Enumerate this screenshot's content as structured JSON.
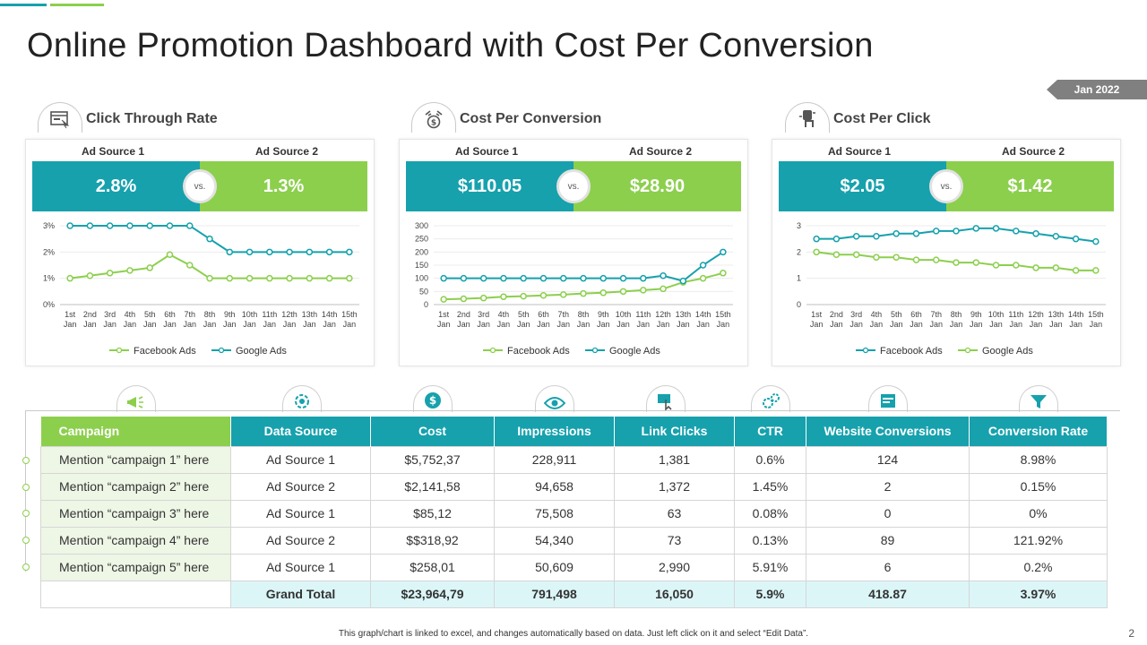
{
  "page": {
    "title": "Online Promotion Dashboard with Cost Per Conversion",
    "date_tag": "Jan 2022",
    "footnote": "This graph/chart is linked to excel, and changes automatically based on data. Just left click on it and select “Edit Data”.",
    "page_number": "2",
    "colors": {
      "teal": "#16a1ad",
      "green": "#8ccf4d",
      "grey": "#808080"
    }
  },
  "panels": [
    {
      "title": "Click  Through Rate",
      "icon": "browser-click-icon",
      "source1_label": "Ad Source 1",
      "source2_label": "Ad Source 2",
      "source1_value": "2.8%",
      "source2_value": "1.3%",
      "vs_label": "vs."
    },
    {
      "title": "Cost Per Conversion",
      "icon": "money-conversion-icon",
      "source1_label": "Ad Source 1",
      "source2_label": "Ad Source 2",
      "source1_value": "$110.05",
      "source2_value": "$28.90",
      "vs_label": "vs."
    },
    {
      "title": "Cost Per Click",
      "icon": "hand-click-icon",
      "source1_label": "Ad Source 1",
      "source2_label": "Ad Source 2",
      "source1_value": "$2.05",
      "source2_value": "$1.42",
      "vs_label": "vs."
    }
  ],
  "chart_data": [
    {
      "type": "line",
      "title": "Click  Through Rate",
      "categories": [
        [
          "1st",
          "Jan"
        ],
        [
          "2nd",
          "Jan"
        ],
        [
          "3rd",
          "Jan"
        ],
        [
          "4th",
          "Jan"
        ],
        [
          "5th",
          "Jan"
        ],
        [
          "6th",
          "Jan"
        ],
        [
          "7th",
          "Jan"
        ],
        [
          "8th",
          "Jan"
        ],
        [
          "9th",
          "Jan"
        ],
        [
          "10th",
          "Jan"
        ],
        [
          "11th",
          "Jan"
        ],
        [
          "12th",
          "Jan"
        ],
        [
          "13th",
          "Jan"
        ],
        [
          "14th",
          "Jan"
        ],
        [
          "15th",
          "Jan"
        ]
      ],
      "yticks": [
        0,
        1,
        2,
        3
      ],
      "ytick_labels": [
        "0%",
        "1%",
        "2%",
        "3%"
      ],
      "ylim": [
        0,
        3
      ],
      "legend": [
        "Facebook Ads",
        "Google Ads"
      ],
      "series": [
        {
          "name": "Facebook Ads",
          "color": "#8ccf4d",
          "values": [
            1.0,
            1.1,
            1.2,
            1.3,
            1.4,
            1.9,
            1.5,
            1.0,
            1.0,
            1.0,
            1.0,
            1.0,
            1.0,
            1.0,
            1.0
          ]
        },
        {
          "name": "Google Ads",
          "color": "#16a1ad",
          "values": [
            3.0,
            3.0,
            3.0,
            3.0,
            3.0,
            3.0,
            3.0,
            2.5,
            2.0,
            2.0,
            2.0,
            2.0,
            2.0,
            2.0,
            2.0
          ]
        }
      ]
    },
    {
      "type": "line",
      "title": "Cost Per Conversion",
      "categories": [
        [
          "1st",
          "Jan"
        ],
        [
          "2nd",
          "Jan"
        ],
        [
          "3rd",
          "Jan"
        ],
        [
          "4th",
          "Jan"
        ],
        [
          "5th",
          "Jan"
        ],
        [
          "6th",
          "Jan"
        ],
        [
          "7th",
          "Jan"
        ],
        [
          "8th",
          "Jan"
        ],
        [
          "9th",
          "Jan"
        ],
        [
          "10th",
          "Jan"
        ],
        [
          "11th",
          "Jan"
        ],
        [
          "12th",
          "Jan"
        ],
        [
          "13th",
          "Jan"
        ],
        [
          "14th",
          "Jan"
        ],
        [
          "15th",
          "Jan"
        ]
      ],
      "yticks": [
        0,
        50,
        100,
        150,
        200,
        250,
        300
      ],
      "ytick_labels": [
        "0",
        "50",
        "100",
        "150",
        "200",
        "250",
        "300"
      ],
      "ylim": [
        0,
        300
      ],
      "legend": [
        "Facebook Ads",
        "Google Ads"
      ],
      "series": [
        {
          "name": "Facebook Ads",
          "color": "#8ccf4d",
          "values": [
            20,
            22,
            25,
            30,
            32,
            35,
            38,
            42,
            45,
            50,
            55,
            60,
            85,
            100,
            120
          ]
        },
        {
          "name": "Google Ads",
          "color": "#16a1ad",
          "values": [
            100,
            100,
            100,
            100,
            100,
            100,
            100,
            100,
            100,
            100,
            100,
            110,
            90,
            150,
            200
          ]
        }
      ]
    },
    {
      "type": "line",
      "title": "Cost Per Click",
      "categories": [
        [
          "1st",
          "Jan"
        ],
        [
          "2nd",
          "Jan"
        ],
        [
          "3rd",
          "Jan"
        ],
        [
          "4th",
          "Jan"
        ],
        [
          "5th",
          "Jan"
        ],
        [
          "6th",
          "Jan"
        ],
        [
          "7th",
          "Jan"
        ],
        [
          "8th",
          "Jan"
        ],
        [
          "9th",
          "Jan"
        ],
        [
          "10th",
          "Jan"
        ],
        [
          "11th",
          "Jan"
        ],
        [
          "12th",
          "Jan"
        ],
        [
          "13th",
          "Jan"
        ],
        [
          "14th",
          "Jan"
        ],
        [
          "15th",
          "Jan"
        ]
      ],
      "yticks": [
        0,
        1,
        2,
        3
      ],
      "ytick_labels": [
        "0",
        "1",
        "2",
        "3"
      ],
      "ylim": [
        0,
        3
      ],
      "legend": [
        "Facebook Ads",
        "Google Ads"
      ],
      "series": [
        {
          "name": "Facebook Ads",
          "color": "#16a1ad",
          "values": [
            2.5,
            2.5,
            2.6,
            2.6,
            2.7,
            2.7,
            2.8,
            2.8,
            2.9,
            2.9,
            2.8,
            2.7,
            2.6,
            2.5,
            2.4
          ]
        },
        {
          "name": "Google Ads",
          "color": "#8ccf4d",
          "values": [
            2.0,
            1.9,
            1.9,
            1.8,
            1.8,
            1.7,
            1.7,
            1.6,
            1.6,
            1.5,
            1.5,
            1.4,
            1.4,
            1.3,
            1.3
          ]
        }
      ]
    }
  ],
  "table": {
    "icons": [
      "megaphone-icon",
      "gear-cycle-icon",
      "dollar-coin-icon",
      "eye-icon",
      "click-cursor-icon",
      "settings-gears-icon",
      "website-icon",
      "conversion-funnel-icon"
    ],
    "headers": [
      "Campaign",
      "Data Source",
      "Cost",
      "Impressions",
      "Link Clicks",
      "CTR",
      "Website Conversions",
      "Conversion Rate"
    ],
    "rows": [
      [
        "Mention “campaign 1” here",
        "Ad Source 1",
        "$5,752,37",
        "228,911",
        "1,381",
        "0.6%",
        "124",
        "8.98%"
      ],
      [
        "Mention “campaign 2” here",
        "Ad Source 2",
        "$2,141,58",
        "94,658",
        "1,372",
        "1.45%",
        "2",
        "0.15%"
      ],
      [
        "Mention “campaign 3” here",
        "Ad Source 1",
        "$85,12",
        "75,508",
        "63",
        "0.08%",
        "0",
        "0%"
      ],
      [
        "Mention “campaign 4” here",
        "Ad Source 2",
        "$$318,92",
        "54,340",
        "73",
        "0.13%",
        "89",
        "121.92%"
      ],
      [
        "Mention “campaign 5” here",
        "Ad Source 1",
        "$258,01",
        "50,609",
        "2,990",
        "5.91%",
        "6",
        "0.2%"
      ]
    ],
    "total": [
      "",
      "Grand Total",
      "$23,964,79",
      "791,498",
      "16,050",
      "5.9%",
      "418.87",
      "3.97%"
    ]
  }
}
